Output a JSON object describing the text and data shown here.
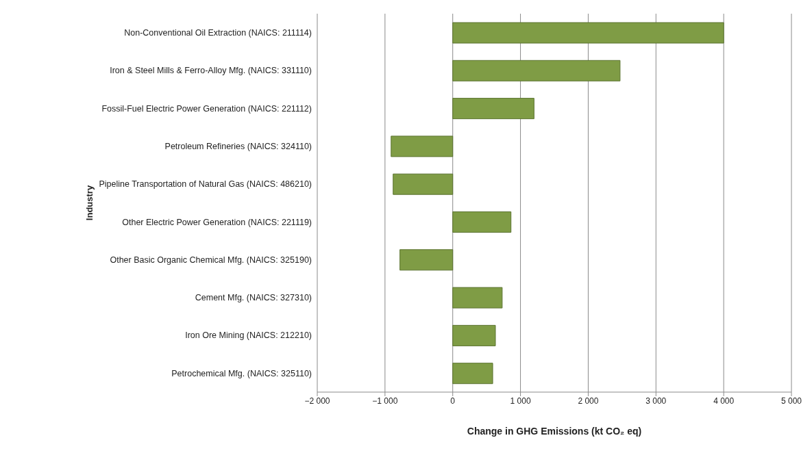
{
  "chart_data": {
    "type": "bar",
    "orientation": "horizontal",
    "xlabel": "Change in GHG Emissions (kt CO₂ eq)",
    "ylabel": "Industry",
    "categories": [
      "Non-Conventional Oil Extraction (NAICS: 211114)",
      "Iron & Steel Mills & Ferro-Alloy Mfg. (NAICS: 331110)",
      "Fossil-Fuel Electric Power Generation (NAICS: 221112)",
      "Petroleum Refineries (NAICS: 324110)",
      "Pipeline Transportation of Natural Gas (NAICS: 486210)",
      "Other Electric Power Generation (NAICS: 221119)",
      "Other Basic Organic Chemical Mfg. (NAICS: 325190)",
      "Cement Mfg. (NAICS: 327310)",
      "Iron Ore Mining (NAICS: 212210)",
      "Petrochemical Mfg. (NAICS: 325110)"
    ],
    "values": [
      4000,
      2470,
      1200,
      -910,
      -880,
      860,
      -780,
      730,
      630,
      590
    ],
    "color": "#7f9c45",
    "xlim": [
      -2000,
      5000
    ],
    "xticks": [
      {
        "value": -2000,
        "label": "−2 000"
      },
      {
        "value": -1000,
        "label": "−1 000"
      },
      0,
      {
        "value": 1000,
        "label": "1 000"
      },
      {
        "value": 2000,
        "label": "2 000"
      },
      {
        "value": 3000,
        "label": "3 000"
      },
      {
        "value": 4000,
        "label": "4 000"
      },
      {
        "value": 5000,
        "label": "5 000"
      }
    ],
    "grid": "x"
  }
}
